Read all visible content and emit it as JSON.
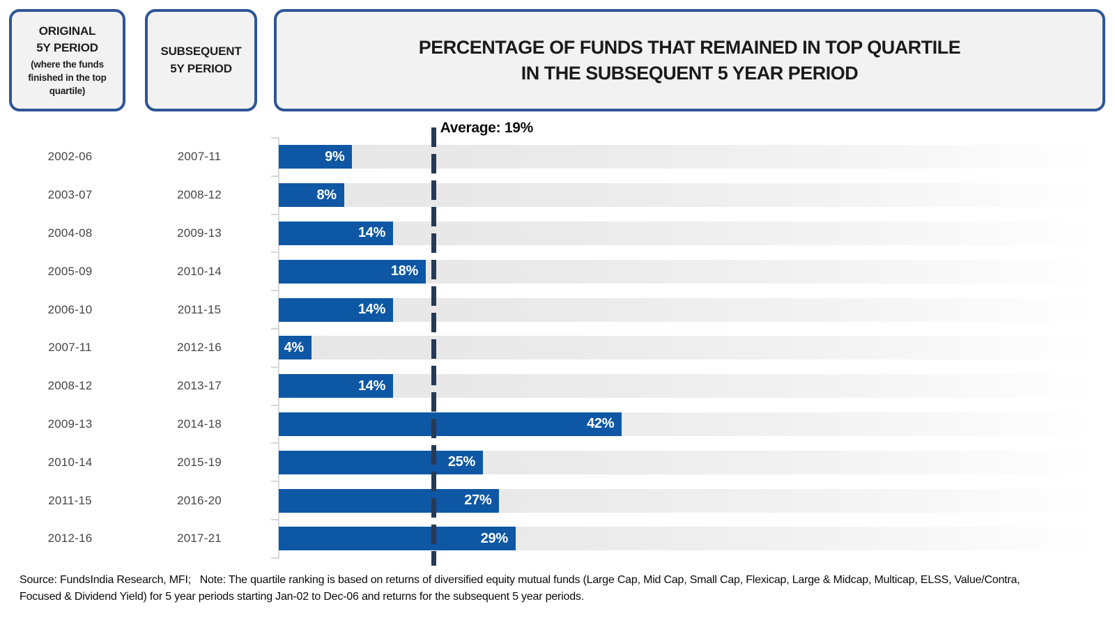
{
  "header": {
    "original_period_box": {
      "title_line1": "ORIGINAL",
      "title_line2": "5Y PERIOD",
      "subtitle": "(where the funds finished in the top quartile)"
    },
    "subsequent_period_box": {
      "title_line1": "SUBSEQUENT",
      "title_line2": "5Y PERIOD"
    },
    "chart_title_line1": "PERCENTAGE OF FUNDS THAT REMAINED IN TOP QUARTILE",
    "chart_title_line2": "IN THE SUBSEQUENT 5 YEAR PERIOD"
  },
  "average": {
    "label": "Average: 19%",
    "value": 19
  },
  "chart_data": {
    "type": "bar",
    "orientation": "horizontal",
    "title": "PERCENTAGE OF FUNDS THAT REMAINED IN TOP QUARTILE IN THE SUBSEQUENT 5 YEAR PERIOD",
    "column_headers": [
      "ORIGINAL 5Y PERIOD (where the funds finished in the top quartile)",
      "SUBSEQUENT 5Y PERIOD"
    ],
    "original_periods": [
      "2002-06",
      "2003-07",
      "2004-08",
      "2005-09",
      "2006-10",
      "2007-11",
      "2008-12",
      "2009-13",
      "2010-14",
      "2011-15",
      "2012-16"
    ],
    "categories": [
      "2007-11",
      "2008-12",
      "2009-13",
      "2010-14",
      "2011-15",
      "2012-16",
      "2013-17",
      "2014-18",
      "2015-19",
      "2016-20",
      "2017-21"
    ],
    "values": [
      9,
      8,
      14,
      18,
      14,
      4,
      14,
      42,
      25,
      27,
      29
    ],
    "value_labels": [
      "9%",
      "8%",
      "14%",
      "18%",
      "14%",
      "4%",
      "14%",
      "42%",
      "25%",
      "27%",
      "29%"
    ],
    "average": 19,
    "average_label": "Average: 19%",
    "xlim": [
      0,
      100
    ],
    "grid": "off",
    "legend": "none",
    "bar_color": "#0e57a4",
    "track_color": "#e6e6e6",
    "average_line_color": "#273a55",
    "axis_color": "#d7d7d7"
  },
  "footer": {
    "line1": "Source: FundsIndia Research, MFI;   Note: The quartile ranking is based on returns of diversified equity mutual funds (Large Cap, Mid Cap, Small Cap, Flexicap, Large & Midcap, Multicap, ELSS, Value/Contra,",
    "line2": "Focused & Dividend Yield) for 5 year periods starting Jan-02 to Dec-06 and returns for the subsequent 5 year periods."
  }
}
